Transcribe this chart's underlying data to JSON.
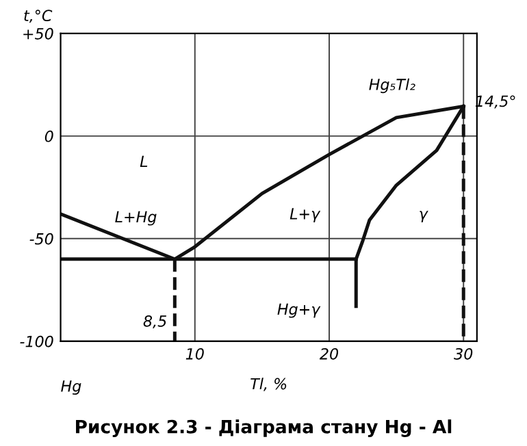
{
  "chart_data": {
    "type": "line",
    "title": "Рисунок 2.3 - Діаграма стану Hg - Al",
    "xlabel": "Tl, %",
    "ylabel": "t,°C",
    "xlim": [
      0,
      31
    ],
    "ylim": [
      -100,
      50
    ],
    "xticks": [
      10,
      20,
      30
    ],
    "yticks": [
      {
        "value": 50,
        "label": "+50"
      },
      0,
      -50,
      -100
    ],
    "grid": true,
    "series": [
      {
        "color": "#111111",
        "line_style": "solid",
        "x": [
          0,
          8.5
        ],
        "values": [
          -38,
          -60
        ]
      },
      {
        "color": "#111111",
        "line_style": "solid",
        "x": [
          8.5,
          10,
          15,
          20,
          25,
          30
        ],
        "values": [
          -60,
          -54,
          -28,
          -9,
          9,
          14.5
        ]
      },
      {
        "color": "#111111",
        "line_style": "solid",
        "x": [
          30,
          28,
          25,
          23,
          22.5,
          22,
          22
        ],
        "values": [
          14.5,
          -7,
          -24,
          -41,
          -51,
          -60,
          -83
        ]
      },
      {
        "color": "#111111",
        "line_style": "solid",
        "x": [
          0,
          22
        ],
        "values": [
          -60,
          -60
        ]
      },
      {
        "color": "#111111",
        "line_style": "dashed",
        "x": [
          8.5,
          8.5
        ],
        "values": [
          -60,
          -100
        ]
      },
      {
        "color": "#111111",
        "line_style": "dashed",
        "x": [
          30,
          30
        ],
        "values": [
          14.5,
          -100
        ]
      }
    ],
    "annotations": [
      "L",
      "L+Hg",
      "L+γ",
      "γ",
      "Hg+γ",
      "Hg₅Tl₂",
      {
        "text": "14,5°",
        "x": 30,
        "y": 14.5
      },
      {
        "text": "8,5",
        "x": 8.5,
        "y": -100
      },
      "Hg"
    ]
  }
}
